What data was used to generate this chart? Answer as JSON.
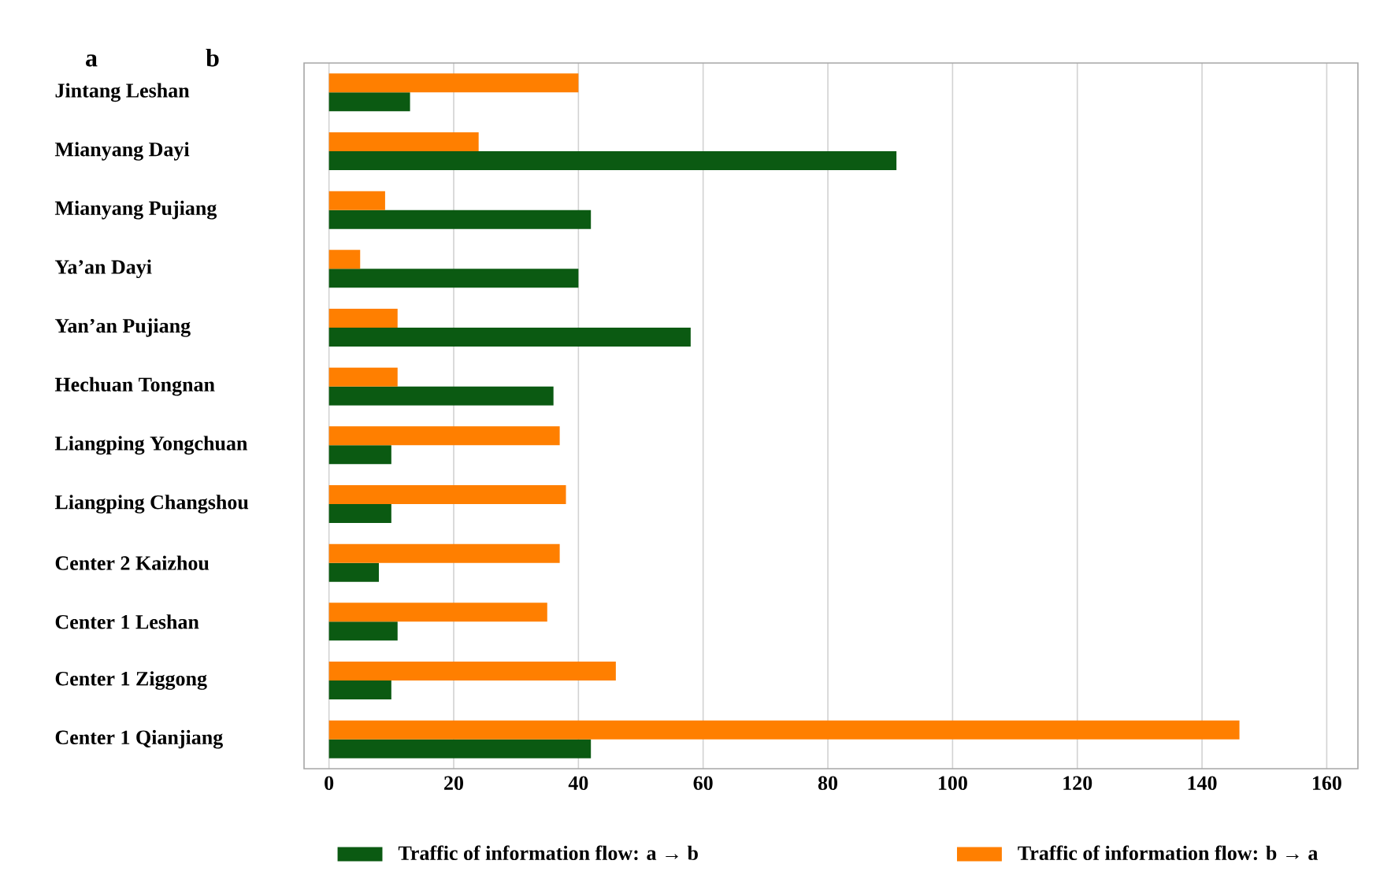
{
  "chart_data": {
    "type": "bar",
    "orientation": "horizontal",
    "annotations": [
      "a",
      "b"
    ],
    "categories": [
      "Jintang Leshan",
      "Mianyang Dayi",
      "Mianyang Pujiang",
      "Ya’an Dayi",
      "Yan’an Pujiang",
      "Hechuan Tongnan",
      "Liangping Yongchuan",
      "Liangping Changshou",
      "Center 2 Kaizhou",
      "Center 1 Leshan",
      "Center 1 Ziggong",
      "Center 1 Qianjiang"
    ],
    "series": [
      {
        "name": "Traffic of information flow: a → b",
        "color": "#0b5a12",
        "values": [
          13,
          91,
          42,
          40,
          58,
          36,
          10,
          10,
          8,
          11,
          10,
          42
        ]
      },
      {
        "name": "Traffic of information flow: b → a",
        "color": "#ff7f00",
        "values": [
          40,
          24,
          9,
          5,
          11,
          11,
          37,
          38,
          37,
          35,
          46,
          146
        ]
      }
    ],
    "xlim": [
      -4,
      165
    ],
    "xticks": [
      0,
      20,
      40,
      60,
      80,
      100,
      120,
      140,
      160
    ],
    "grid": "x",
    "legend": "bottom"
  }
}
